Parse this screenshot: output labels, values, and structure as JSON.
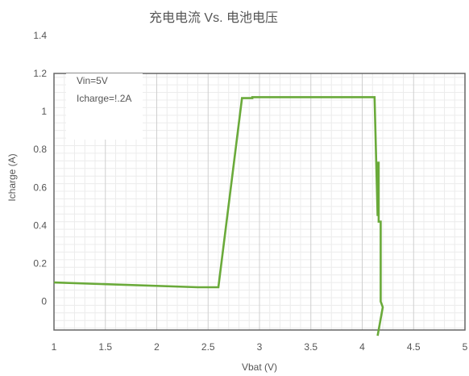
{
  "chart_data": {
    "type": "line",
    "title": "充电电流 Vs. 电池电压",
    "xlabel": "Vbat (V)",
    "ylabel": "Icharge (A)",
    "xlim": [
      1,
      5
    ],
    "ylim": [
      -0.15,
      1.2
    ],
    "x_ticks": [
      1,
      1.5,
      2,
      2.5,
      3,
      3.5,
      4,
      4.5,
      5
    ],
    "x_tick_labels": [
      "1",
      "1.5",
      "2",
      "2.5",
      "3",
      "3.5",
      "4",
      "4.5",
      "5"
    ],
    "y_ticks": [
      1.4,
      1.2,
      1,
      0.8,
      0.6,
      0.4,
      0.2,
      0
    ],
    "y_tick_labels": [
      "1.4",
      "1.2",
      "1",
      "0.8",
      "0.6",
      "0.4",
      "0.2",
      "0"
    ],
    "grid": true,
    "annotations": [
      "Vin=5V",
      "Icharge=!.2A"
    ],
    "series": [
      {
        "color": "#6aaa3a",
        "points": [
          [
            1.0,
            0.1
          ],
          [
            2.4,
            0.075
          ],
          [
            2.6,
            0.075
          ],
          [
            2.83,
            1.07
          ],
          [
            2.93,
            1.07
          ],
          [
            2.93,
            1.075
          ],
          [
            4.12,
            1.075
          ],
          [
            4.15,
            0.45
          ],
          [
            4.15,
            0.73
          ],
          [
            4.16,
            0.73
          ],
          [
            4.16,
            0.42
          ],
          [
            4.18,
            0.42
          ],
          [
            4.18,
            0.0
          ],
          [
            4.2,
            -0.03
          ],
          [
            4.15,
            -0.18
          ]
        ]
      }
    ]
  }
}
